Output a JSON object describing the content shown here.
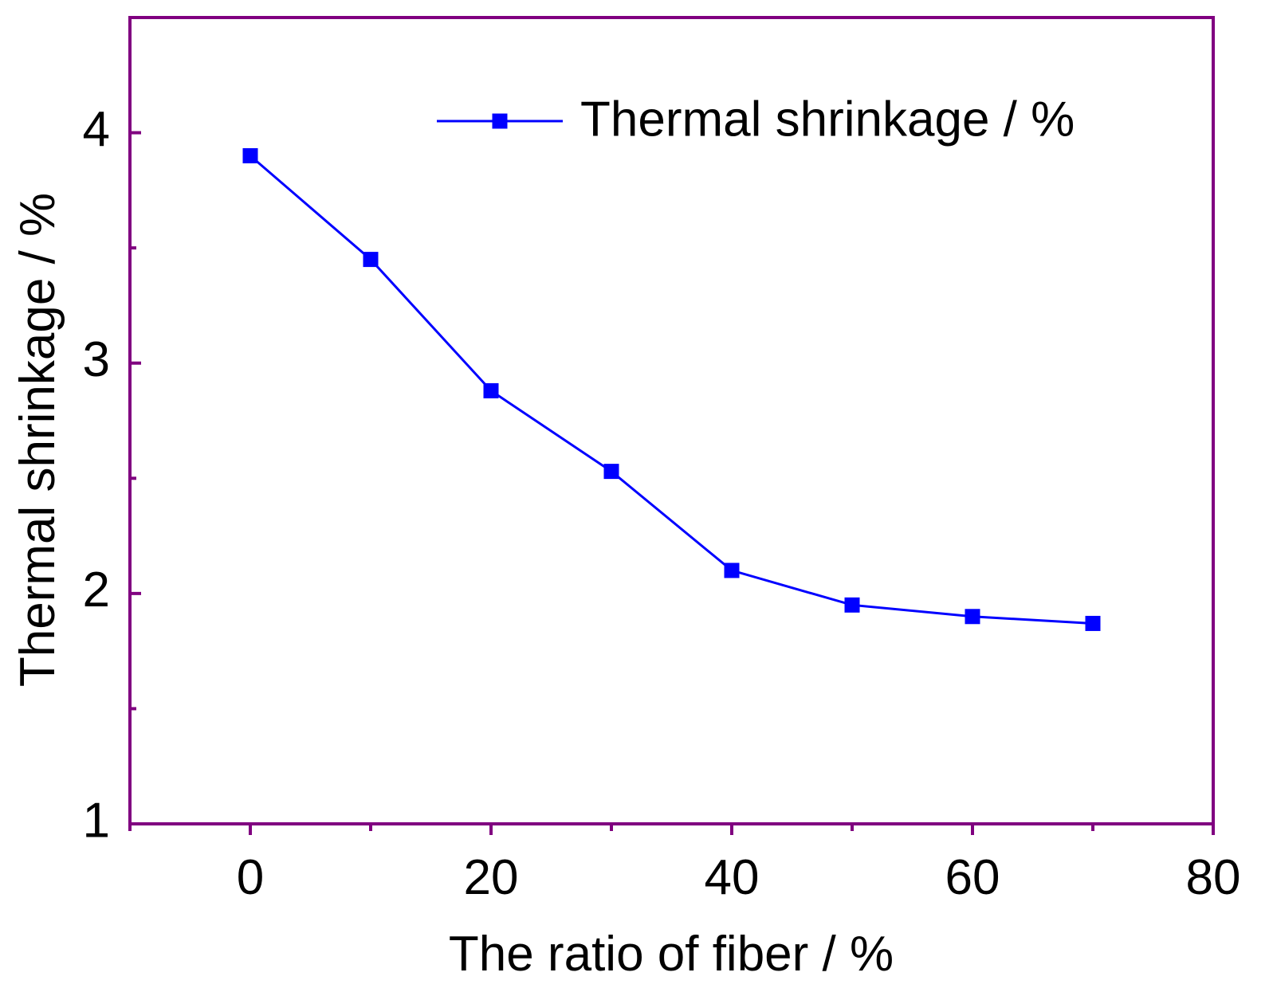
{
  "colors": {
    "axis": "#800080",
    "series": "#0000ff",
    "text": "#000000",
    "background": "#ffffff"
  },
  "chart_data": {
    "type": "line",
    "title": "",
    "xlabel": "The ratio of fiber / %",
    "ylabel": "Thermal shrinkage / %",
    "xlim": [
      -10,
      80
    ],
    "ylim": [
      1,
      4.5
    ],
    "x_ticks": [
      0,
      20,
      40,
      60,
      80
    ],
    "x_minor_ticks": [
      -10,
      10,
      30,
      50,
      70
    ],
    "y_ticks": [
      1,
      2,
      3,
      4
    ],
    "y_minor_ticks": [
      1.5,
      2.5,
      3.5,
      4.5
    ],
    "grid": false,
    "legend_position": "top-right",
    "marker": "square",
    "series": [
      {
        "name": "Thermal shrinkage / %",
        "x": [
          0,
          10,
          20,
          30,
          40,
          50,
          60,
          70
        ],
        "y": [
          3.9,
          3.45,
          2.88,
          2.53,
          2.1,
          1.95,
          1.9,
          1.87
        ]
      }
    ]
  }
}
